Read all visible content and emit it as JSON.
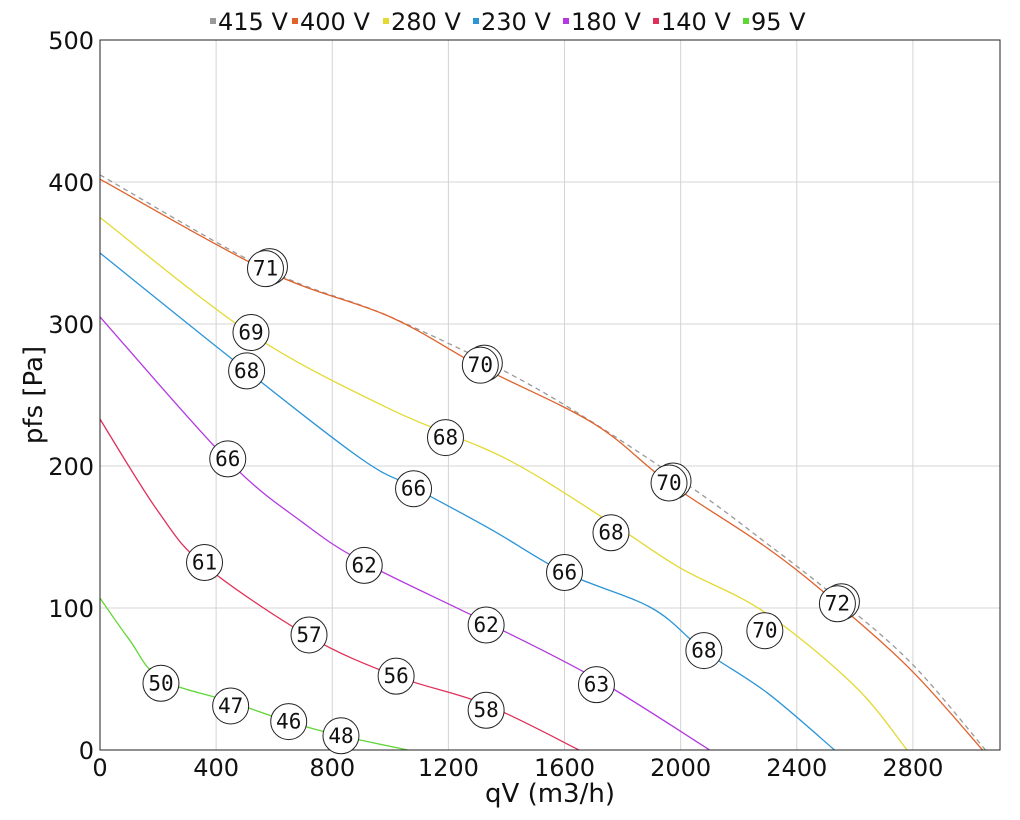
{
  "chart_data": {
    "type": "line",
    "xlabel": "qV (m3/h)",
    "ylabel": "pfs [Pa]",
    "xlim": [
      0,
      3100
    ],
    "ylim": [
      0,
      500
    ],
    "xticks": [
      "0",
      "400",
      "800",
      "1200",
      "1600",
      "2000",
      "2400",
      "2800"
    ],
    "yticks": [
      "0",
      "100",
      "200",
      "300",
      "400",
      "500"
    ],
    "grid": true,
    "legend_position": "top",
    "series": [
      {
        "name": "415 V",
        "color": "#999999",
        "dashed": true,
        "points": [
          [
            0,
            405
          ],
          [
            580,
            338
          ],
          [
            1000,
            305
          ],
          [
            1500,
            255
          ],
          [
            2000,
            190
          ],
          [
            2300,
            145
          ],
          [
            2550,
            105
          ],
          [
            2800,
            60
          ],
          [
            3050,
            0
          ]
        ],
        "markers": []
      },
      {
        "name": "400 V",
        "color": "#e0622c",
        "dashed": false,
        "points": [
          [
            0,
            402
          ],
          [
            580,
            337
          ],
          [
            1000,
            305
          ],
          [
            1310,
            270
          ],
          [
            1700,
            230
          ],
          [
            1960,
            188
          ],
          [
            2300,
            142
          ],
          [
            2540,
            103
          ],
          [
            2800,
            55
          ],
          [
            3040,
            0
          ]
        ],
        "markers": [
          {
            "x": 570,
            "y": 339,
            "label": "71"
          },
          {
            "x": 1310,
            "y": 271,
            "label": "70"
          },
          {
            "x": 1960,
            "y": 188,
            "label": "70"
          },
          {
            "x": 2540,
            "y": 103,
            "label": "72"
          }
        ]
      },
      {
        "name": "280 V",
        "color": "#e3d932",
        "dashed": false,
        "points": [
          [
            0,
            375
          ],
          [
            520,
            293
          ],
          [
            1000,
            240
          ],
          [
            1400,
            205
          ],
          [
            1760,
            160
          ],
          [
            2000,
            128
          ],
          [
            2290,
            97
          ],
          [
            2600,
            45
          ],
          [
            2780,
            0
          ]
        ],
        "markers": [
          {
            "x": 520,
            "y": 294,
            "label": "69"
          },
          {
            "x": 1190,
            "y": 220,
            "label": "68"
          },
          {
            "x": 1760,
            "y": 153,
            "label": "68"
          },
          {
            "x": 2290,
            "y": 84,
            "label": "70"
          }
        ]
      },
      {
        "name": "230 V",
        "color": "#2b95d8",
        "dashed": false,
        "points": [
          [
            0,
            350
          ],
          [
            500,
            268
          ],
          [
            900,
            205
          ],
          [
            1080,
            185
          ],
          [
            1350,
            155
          ],
          [
            1600,
            125
          ],
          [
            1900,
            100
          ],
          [
            2080,
            70
          ],
          [
            2300,
            40
          ],
          [
            2530,
            0
          ]
        ],
        "markers": [
          {
            "x": 505,
            "y": 267,
            "label": "68"
          },
          {
            "x": 1080,
            "y": 184,
            "label": "66"
          },
          {
            "x": 1600,
            "y": 125,
            "label": "66"
          },
          {
            "x": 2080,
            "y": 70,
            "label": "68"
          }
        ]
      },
      {
        "name": "180 V",
        "color": "#b33ae0",
        "dashed": false,
        "points": [
          [
            0,
            305
          ],
          [
            440,
            204
          ],
          [
            700,
            160
          ],
          [
            910,
            132
          ],
          [
            1330,
            90
          ],
          [
            1710,
            50
          ],
          [
            2100,
            0
          ]
        ],
        "markers": [
          {
            "x": 440,
            "y": 205,
            "label": "66"
          },
          {
            "x": 910,
            "y": 130,
            "label": "62"
          },
          {
            "x": 1330,
            "y": 88,
            "label": "62"
          },
          {
            "x": 1710,
            "y": 46,
            "label": "63"
          }
        ]
      },
      {
        "name": "140 V",
        "color": "#e0305a",
        "dashed": false,
        "points": [
          [
            0,
            233
          ],
          [
            200,
            168
          ],
          [
            360,
            130
          ],
          [
            720,
            80
          ],
          [
            1020,
            52
          ],
          [
            1330,
            32
          ],
          [
            1650,
            0
          ]
        ],
        "markers": [
          {
            "x": 360,
            "y": 132,
            "label": "61"
          },
          {
            "x": 720,
            "y": 81,
            "label": "57"
          },
          {
            "x": 1020,
            "y": 52,
            "label": "56"
          },
          {
            "x": 1330,
            "y": 28,
            "label": "58"
          }
        ]
      },
      {
        "name": "95 V",
        "color": "#5ed634",
        "dashed": false,
        "points": [
          [
            0,
            107
          ],
          [
            100,
            78
          ],
          [
            210,
            50
          ],
          [
            450,
            34
          ],
          [
            650,
            20
          ],
          [
            830,
            10
          ],
          [
            1060,
            0
          ]
        ],
        "markers": [
          {
            "x": 210,
            "y": 47,
            "label": "50"
          },
          {
            "x": 450,
            "y": 31,
            "label": "47"
          },
          {
            "x": 650,
            "y": 20,
            "label": "46"
          },
          {
            "x": 830,
            "y": 10,
            "label": "48"
          }
        ]
      }
    ]
  }
}
